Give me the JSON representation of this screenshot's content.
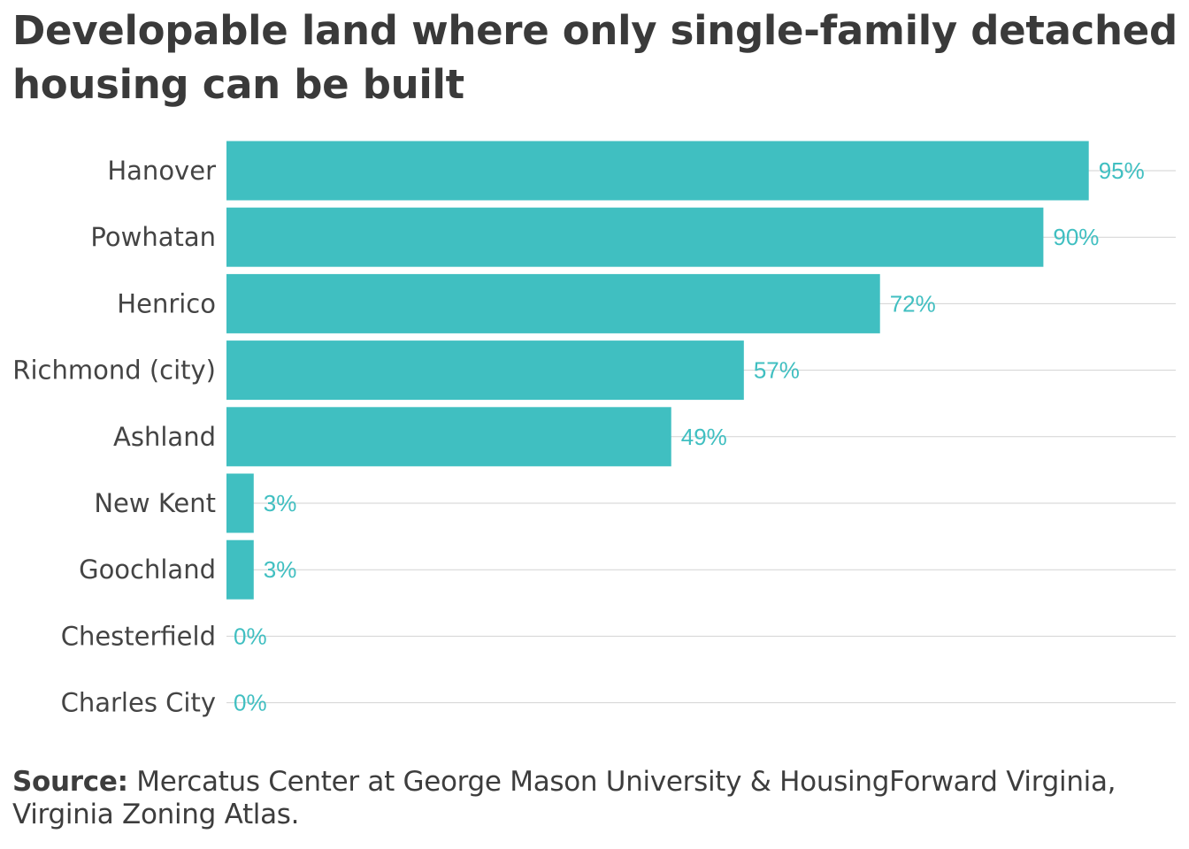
{
  "chart_data": {
    "type": "bar",
    "orientation": "horizontal",
    "title": "Developable land where only single-family detached housing can be built",
    "categories": [
      "Hanover",
      "Powhatan",
      "Henrico",
      "Richmond (city)",
      "Ashland",
      "New Kent",
      "Goochland",
      "Chesterfield",
      "Charles City"
    ],
    "values": [
      95,
      90,
      72,
      57,
      49,
      3,
      3,
      0,
      0
    ],
    "value_labels": [
      "95%",
      "90%",
      "72%",
      "57%",
      "49%",
      "3%",
      "3%",
      "0%",
      "0%"
    ],
    "xlim": [
      0,
      100
    ],
    "grid": true,
    "bar_color": "#40bfc1",
    "label_color": "#40bfc1"
  },
  "source": {
    "label": "Source:",
    "text": "Mercatus Center at George Mason University & HousingForward Virginia, Virginia Zoning Atlas."
  }
}
